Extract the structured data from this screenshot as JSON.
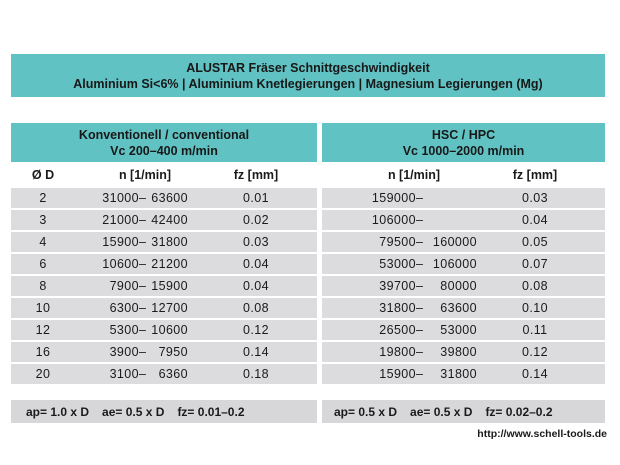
{
  "glyphs": {
    "dash": "–"
  },
  "colors": {
    "teal": "#60c2c3",
    "row_gray": "#dcdcde",
    "footer_gray": "#d7d7d9",
    "text": "#1a1a1a"
  },
  "title_band": {
    "line1": "ALUSTAR Fräser Schnittgeschwindigkeit",
    "line2": "Aluminium Si<6% | Aluminium Knetlegierungen | Magnesium Legierungen (Mg)"
  },
  "sections": {
    "conventional": {
      "title": "Konventionell / conventional",
      "vc": "Vc 200–400 m/min"
    },
    "hsc": {
      "title": "HSC / HPC",
      "vc": "Vc 1000–2000 m/min"
    }
  },
  "columns": {
    "d": "Ø D",
    "n": "n [1/min]",
    "fz": "fz [mm]"
  },
  "rows": [
    {
      "d": "2",
      "conv_from": "31000",
      "conv_to": "63600",
      "conv_fz": "0.01",
      "hsc_from": "159000",
      "hsc_to": "",
      "hsc_fz": "0.03"
    },
    {
      "d": "3",
      "conv_from": "21000",
      "conv_to": "42400",
      "conv_fz": "0.02",
      "hsc_from": "106000",
      "hsc_to": "",
      "hsc_fz": "0.04"
    },
    {
      "d": "4",
      "conv_from": "15900",
      "conv_to": "31800",
      "conv_fz": "0.03",
      "hsc_from": "79500",
      "hsc_to": "160000",
      "hsc_fz": "0.05"
    },
    {
      "d": "6",
      "conv_from": "10600",
      "conv_to": "21200",
      "conv_fz": "0.04",
      "hsc_from": "53000",
      "hsc_to": "106000",
      "hsc_fz": "0.07"
    },
    {
      "d": "8",
      "conv_from": "7900",
      "conv_to": "15900",
      "conv_fz": "0.04",
      "hsc_from": "39700",
      "hsc_to": "80000",
      "hsc_fz": "0.08"
    },
    {
      "d": "10",
      "conv_from": "6300",
      "conv_to": "12700",
      "conv_fz": "0.08",
      "hsc_from": "31800",
      "hsc_to": "63600",
      "hsc_fz": "0.10"
    },
    {
      "d": "12",
      "conv_from": "5300",
      "conv_to": "10600",
      "conv_fz": "0.12",
      "hsc_from": "26500",
      "hsc_to": "53000",
      "hsc_fz": "0.11"
    },
    {
      "d": "16",
      "conv_from": "3900",
      "conv_to": "7950",
      "conv_fz": "0.14",
      "hsc_from": "19800",
      "hsc_to": "39800",
      "hsc_fz": "0.12"
    },
    {
      "d": "20",
      "conv_from": "3100",
      "conv_to": "6360",
      "conv_fz": "0.18",
      "hsc_from": "15900",
      "hsc_to": "31800",
      "hsc_fz": "0.14"
    }
  ],
  "footer": {
    "conventional": {
      "ap": "ap= 1.0 x D",
      "ae": "ae= 0.5 x D",
      "fz": "fz= 0.01–0.2"
    },
    "hsc": {
      "ap": "ap= 0.5 x D",
      "ae": "ae= 0.5 x D",
      "fz": "fz= 0.02–0.2"
    }
  },
  "url": "http://www.schell-tools.de"
}
